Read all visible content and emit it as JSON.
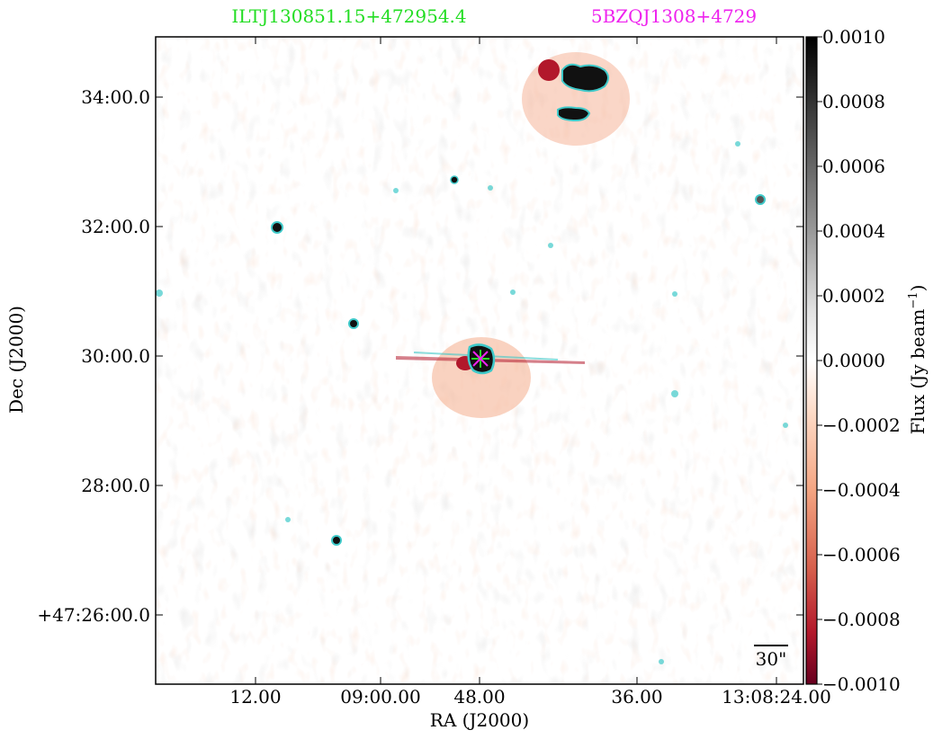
{
  "chart_data": {
    "type": "heatmap",
    "title_left": "ILTJ130851.15+472954.4",
    "title_right": "5BZQJ1308+4729",
    "title_left_color": "#22dd22",
    "title_right_color": "#ee22ee",
    "xlabel": "RA (J2000)",
    "ylabel": "Dec (J2000)",
    "colorbar_label": "Flux (Jy beam",
    "colorbar_label_sup": "−1",
    "colorbar_label_end": ")",
    "x_ticks": [
      "12.00",
      "09:00.00",
      "48.00",
      "36.00",
      "13:08:24.00"
    ],
    "y_ticks": [
      "34:00.0",
      "32:00.0",
      "30:00.0",
      "28:00.0",
      "+47:26:00.0"
    ],
    "colorbar_ticks": [
      "0.0010",
      "0.0008",
      "0.0006",
      "0.0004",
      "0.0002",
      "0.0000",
      "−0.0002",
      "−0.0004",
      "−0.0006",
      "−0.0008",
      "−0.0010"
    ],
    "colorbar_range": [
      -0.001,
      0.001
    ],
    "scalebar_label": "30\"",
    "contour_color": "#3fc9c9",
    "marker_colors": [
      "#22dd22",
      "#ee22ee"
    ],
    "colormap": {
      "positive": "#000000",
      "zero": "#ffffff",
      "negative": "#67001f"
    }
  }
}
